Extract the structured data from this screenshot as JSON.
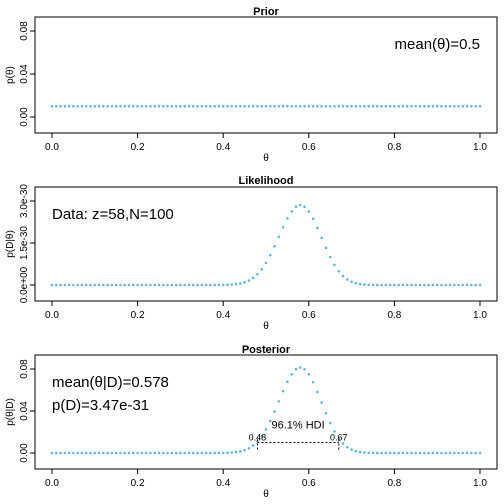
{
  "colors": {
    "curve": "#5bb8e0",
    "axis": "#000000"
  },
  "chart_data": [
    {
      "type": "scatter",
      "title": "Prior",
      "xlabel": "θ",
      "ylabel": "p(θ)",
      "xlim": [
        0,
        1
      ],
      "ylim": [
        0,
        0.08
      ],
      "xticks": [
        "0.0",
        "0.2",
        "0.4",
        "0.6",
        "0.8",
        "1.0"
      ],
      "xtick_values": [
        0,
        0.2,
        0.4,
        0.6,
        0.8,
        1.0
      ],
      "yticks": [
        "0.00",
        "0.04",
        "0.08"
      ],
      "ytick_values": [
        0,
        0.04,
        0.08
      ],
      "curve": {
        "kind": "uniform",
        "value": 0.01,
        "n": 101
      },
      "annotations": [
        {
          "text": "mean(θ)=0.5",
          "position": "top-right"
        }
      ]
    },
    {
      "type": "scatter",
      "title": "Likelihood",
      "xlabel": "θ",
      "ylabel": "p(D|θ)",
      "xlim": [
        0,
        1
      ],
      "ylim": [
        0,
        3e-30
      ],
      "xticks": [
        "0.0",
        "0.2",
        "0.4",
        "0.6",
        "0.8",
        "1.0"
      ],
      "xtick_values": [
        0,
        0.2,
        0.4,
        0.6,
        0.8,
        1.0
      ],
      "yticks": [
        "0.0e+00",
        "1.5e-30",
        "3.0e-30"
      ],
      "ytick_values": [
        0,
        1.5e-30,
        3e-30
      ],
      "curve": {
        "kind": "bernoulli_likelihood",
        "z": 58,
        "N": 100,
        "n": 101
      },
      "annotations": [
        {
          "text": "Data: z=58,N=100",
          "position": "top-left"
        }
      ]
    },
    {
      "type": "scatter",
      "title": "Posterior",
      "xlabel": "θ",
      "ylabel": "p(θ|D)",
      "xlim": [
        0,
        1
      ],
      "ylim": [
        0,
        0.08
      ],
      "xticks": [
        "0.0",
        "0.2",
        "0.4",
        "0.6",
        "0.8",
        "1.0"
      ],
      "xtick_values": [
        0,
        0.2,
        0.4,
        0.6,
        0.8,
        1.0
      ],
      "yticks": [
        "0.00",
        "0.04",
        "0.08"
      ],
      "ytick_values": [
        0,
        0.04,
        0.08
      ],
      "curve": {
        "kind": "posterior",
        "z": 58,
        "N": 100,
        "n": 101
      },
      "annotations": [
        {
          "text": "mean(θ|D)=0.578",
          "position": "top-left"
        },
        {
          "text": "p(D)=3.47e-31",
          "position": "top-left"
        }
      ],
      "hdi": {
        "label": "96.1% HDI",
        "low": 0.48,
        "high": 0.67,
        "low_label": "0.48",
        "high_label": "0.67",
        "height": 0.01
      }
    }
  ]
}
